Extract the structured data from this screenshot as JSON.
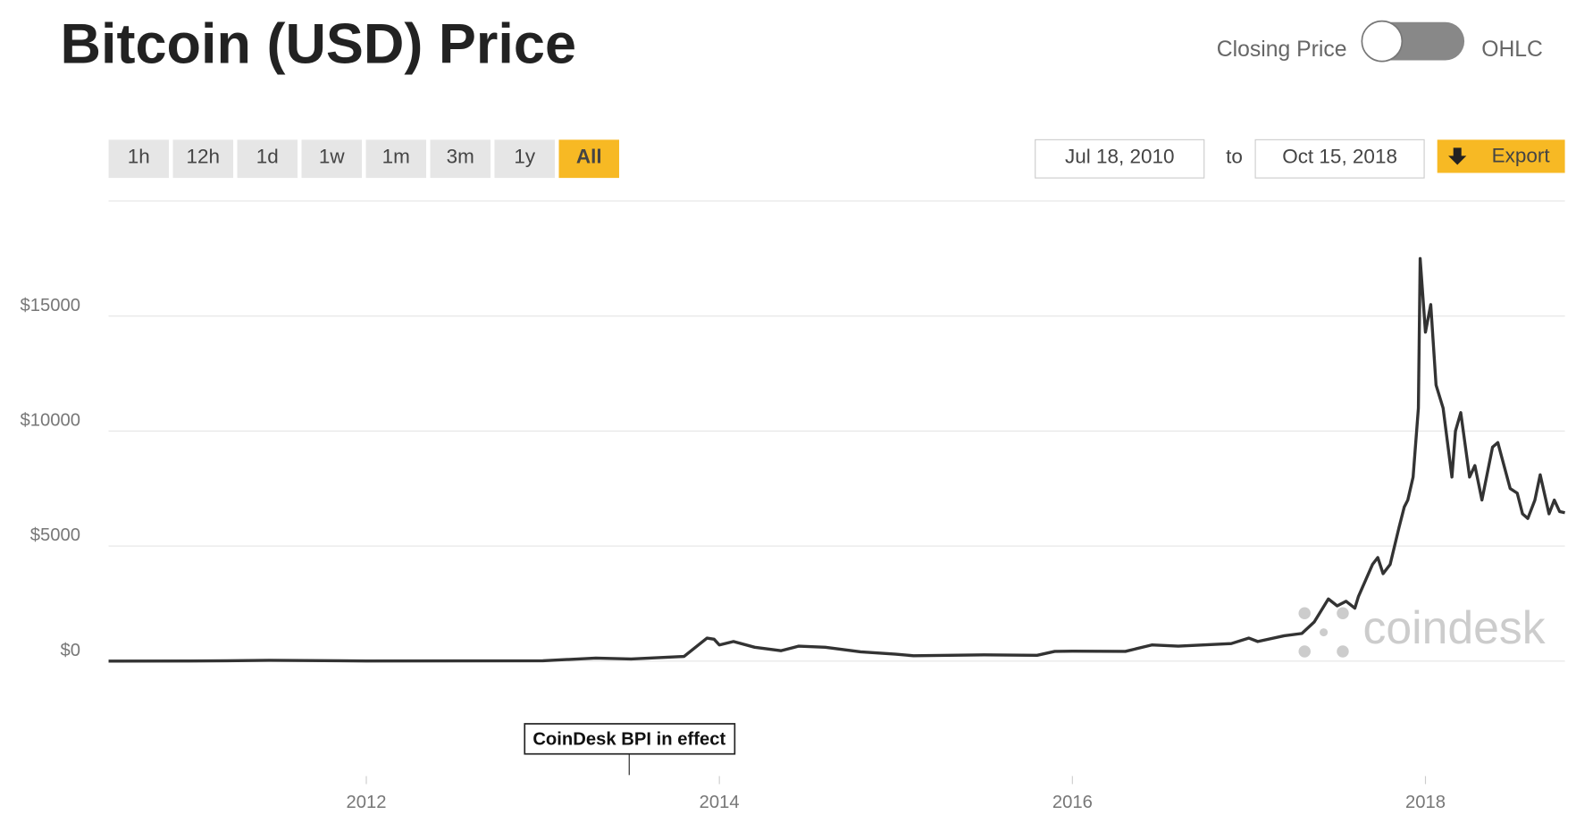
{
  "header": {
    "title": "Bitcoin (USD) Price",
    "toggle_left": "Closing Price",
    "toggle_right": "OHLC"
  },
  "toolbar": {
    "ranges": [
      "1h",
      "12h",
      "1d",
      "1w",
      "1m",
      "3m",
      "1y",
      "All"
    ],
    "active": "All",
    "date_from": "Jul 18, 2010",
    "date_sep": "to",
    "date_to": "Oct 15, 2018",
    "export": "Export"
  },
  "chart_data": {
    "type": "line",
    "annotation": "CoinDesk BPI in effect",
    "watermark": "coindesk",
    "xlim": [
      2010.54,
      2018.79
    ],
    "xticks": [
      2012,
      2014,
      2016,
      2018
    ],
    "ylim": [
      -5000,
      20000
    ],
    "yticks": [
      {
        "value": 0,
        "label": "$0"
      },
      {
        "value": 5000,
        "label": "$5000"
      },
      {
        "value": 10000,
        "label": "$10000"
      },
      {
        "value": 15000,
        "label": "$15000"
      }
    ],
    "grid": true,
    "series": [
      {
        "name": "Closing Price",
        "color": "#333333",
        "x": [
          2010.54,
          2011.0,
          2011.45,
          2012.0,
          2013.0,
          2013.3,
          2013.5,
          2013.8,
          2013.93,
          2013.97,
          2014.0,
          2014.08,
          2014.2,
          2014.35,
          2014.45,
          2014.6,
          2014.8,
          2015.0,
          2015.1,
          2015.5,
          2015.8,
          2015.9,
          2016.0,
          2016.3,
          2016.45,
          2016.6,
          2016.9,
          2017.0,
          2017.05,
          2017.2,
          2017.3,
          2017.37,
          2017.45,
          2017.5,
          2017.55,
          2017.6,
          2017.62,
          2017.7,
          2017.73,
          2017.76,
          2017.8,
          2017.85,
          2017.88,
          2017.9,
          2017.93,
          2017.96,
          2017.97,
          2018.0,
          2018.03,
          2018.06,
          2018.1,
          2018.15,
          2018.17,
          2018.2,
          2018.25,
          2018.28,
          2018.32,
          2018.38,
          2018.41,
          2018.48,
          2018.52,
          2018.55,
          2018.58,
          2018.62,
          2018.65,
          2018.7,
          2018.73,
          2018.76,
          2018.79
        ],
        "values": [
          0,
          1,
          30,
          5,
          13,
          130,
          90,
          200,
          1000,
          950,
          700,
          850,
          600,
          450,
          650,
          600,
          400,
          300,
          230,
          270,
          250,
          420,
          430,
          420,
          700,
          650,
          760,
          1000,
          850,
          1100,
          1200,
          1700,
          2700,
          2400,
          2600,
          2300,
          2800,
          4200,
          4500,
          3800,
          4200,
          5800,
          6700,
          7000,
          8000,
          11000,
          17500,
          14300,
          15500,
          12000,
          11000,
          8000,
          10000,
          10800,
          8000,
          8500,
          7000,
          9300,
          9500,
          7500,
          7300,
          6400,
          6200,
          7000,
          8100,
          6400,
          7000,
          6500,
          6450
        ]
      }
    ]
  }
}
